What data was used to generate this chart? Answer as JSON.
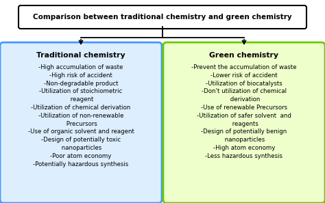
{
  "title": "Comparison between traditional chemistry and green chemistry",
  "title_box_color": "#000000",
  "title_bg_color": "#ffffff",
  "left_title": "Traditional chemistry",
  "left_box_color": "#4499ff",
  "left_bg_color": "#ddeeff",
  "left_items": "-High accumulation of waste\n-High risk of accident\n-Non-degradable product\n-Utilization of stoichiometric\n reagent\n-Utilization of chemical derivation\n-Utilization of non-renewable\n Precursors\n-Use of organic solvent and reagent\n-Design of potentially toxic\n nanoparticles\n-Poor atom economy\n-Potentially hazardous synthesis",
  "right_title": "Green chemistry",
  "right_box_color": "#66cc00",
  "right_bg_color": "#eeffcc",
  "right_items": "-Prevent the accumulation of waste\n-Lower risk of accident\n-Utilization of biocatalysts\n-Don't utilization of chemical\n derivation\n-Use of renewable Precursors\n-Utilization of safer solvent  and\n reagents\n-Design of potentially benign\n nanoparticles\n-High atom economy\n-Less hazardous synthesis",
  "bg_color": "#ffffff",
  "arrow_color": "#000000",
  "font_size_title": 7.5,
  "font_size_box_title": 7.8,
  "font_size_items": 6.2
}
